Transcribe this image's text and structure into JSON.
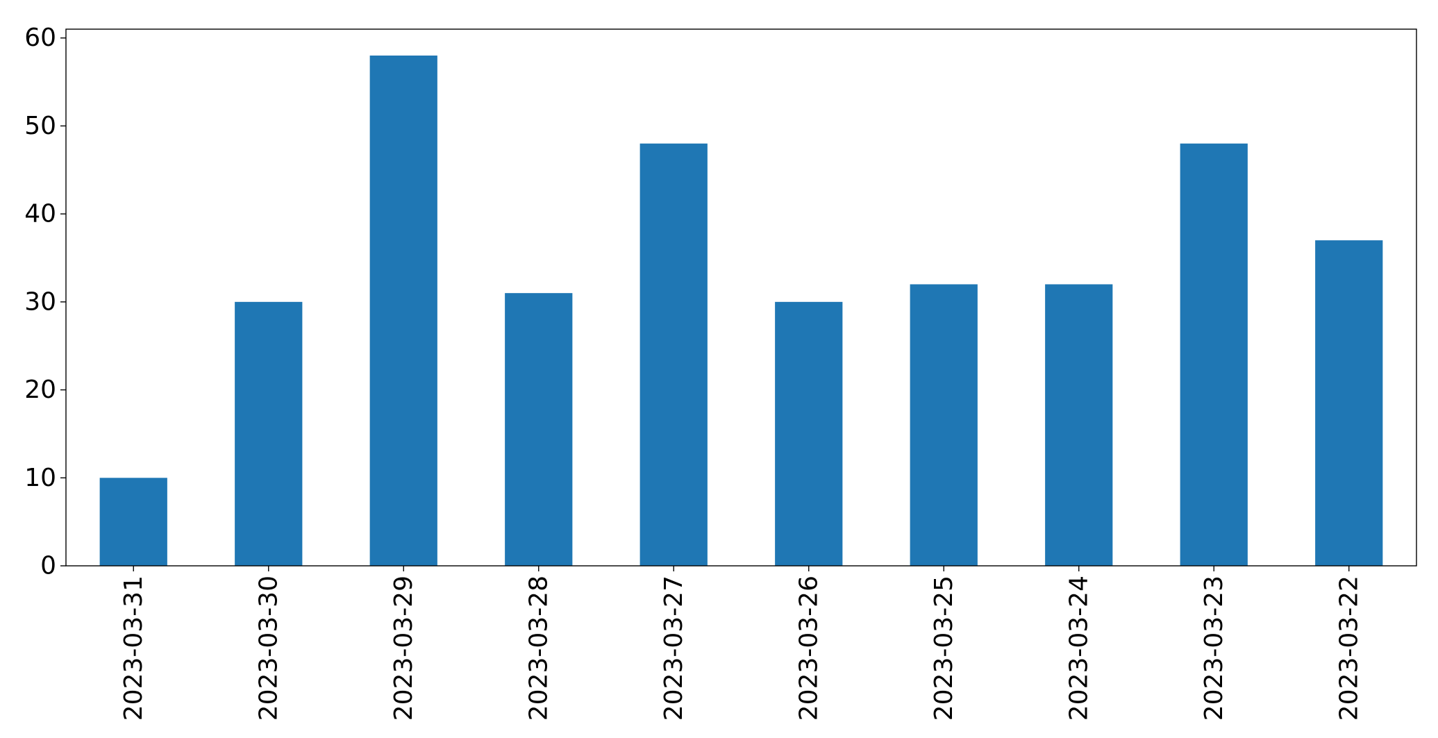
{
  "chart_data": {
    "type": "bar",
    "title": "",
    "xlabel": "",
    "ylabel": "",
    "categories": [
      "2023-03-31",
      "2023-03-30",
      "2023-03-29",
      "2023-03-28",
      "2023-03-27",
      "2023-03-26",
      "2023-03-25",
      "2023-03-24",
      "2023-03-23",
      "2023-03-22"
    ],
    "values": [
      10,
      30,
      58,
      31,
      48,
      30,
      32,
      32,
      48,
      37
    ],
    "ylim": [
      0,
      61
    ],
    "yticks": [
      0,
      10,
      20,
      30,
      40,
      50,
      60
    ],
    "grid": false,
    "legend": false,
    "colors": {
      "bar": "#1f77b4",
      "axis": "#000000",
      "background": "#ffffff"
    }
  }
}
